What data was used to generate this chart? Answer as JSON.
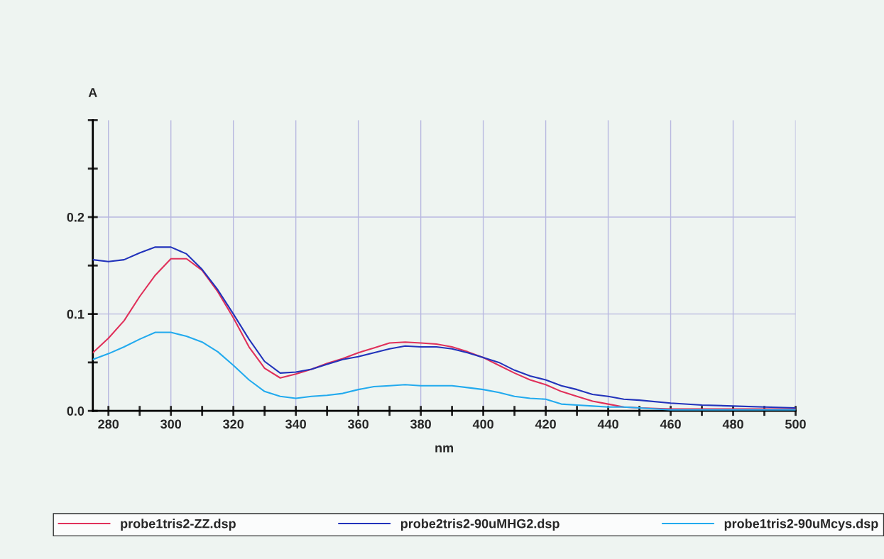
{
  "chart_data": {
    "type": "line",
    "xlabel": "nm",
    "ylabel": "A",
    "x": [
      275,
      280,
      285,
      290,
      295,
      300,
      305,
      310,
      315,
      320,
      325,
      330,
      335,
      340,
      345,
      350,
      355,
      360,
      365,
      370,
      375,
      380,
      385,
      390,
      395,
      400,
      405,
      410,
      415,
      420,
      425,
      430,
      435,
      440,
      445,
      450,
      460,
      470,
      480,
      490,
      500
    ],
    "series": [
      {
        "name": "probe1tris2-ZZ.dsp",
        "color": "#e0305a",
        "values": [
          0.06,
          0.075,
          0.093,
          0.118,
          0.14,
          0.157,
          0.157,
          0.145,
          0.123,
          0.096,
          0.066,
          0.044,
          0.034,
          0.038,
          0.043,
          0.049,
          0.054,
          0.06,
          0.065,
          0.07,
          0.071,
          0.07,
          0.069,
          0.066,
          0.061,
          0.055,
          0.047,
          0.039,
          0.032,
          0.027,
          0.02,
          0.015,
          0.01,
          0.007,
          0.004,
          0.003,
          0.002,
          0.002,
          0.002,
          0.002,
          0.002
        ]
      },
      {
        "name": "probe2tris2-90uMHG2.dsp",
        "color": "#2233bb",
        "values": [
          0.156,
          0.154,
          0.156,
          0.163,
          0.169,
          0.169,
          0.162,
          0.146,
          0.125,
          0.1,
          0.074,
          0.051,
          0.039,
          0.04,
          0.043,
          0.048,
          0.053,
          0.056,
          0.06,
          0.064,
          0.067,
          0.066,
          0.066,
          0.064,
          0.06,
          0.055,
          0.05,
          0.042,
          0.036,
          0.032,
          0.026,
          0.022,
          0.017,
          0.015,
          0.012,
          0.011,
          0.008,
          0.006,
          0.005,
          0.004,
          0.003
        ]
      },
      {
        "name": "probe1tris2-90uMcys.dsp",
        "color": "#22aaee",
        "values": [
          0.053,
          0.059,
          0.066,
          0.074,
          0.081,
          0.081,
          0.077,
          0.071,
          0.061,
          0.047,
          0.032,
          0.02,
          0.015,
          0.013,
          0.015,
          0.016,
          0.018,
          0.022,
          0.025,
          0.026,
          0.027,
          0.026,
          0.026,
          0.026,
          0.024,
          0.022,
          0.019,
          0.015,
          0.013,
          0.012,
          0.007,
          0.006,
          0.005,
          0.004,
          0.004,
          0.003,
          0.001,
          0.001,
          0.001,
          0.001,
          0.001
        ]
      }
    ],
    "xlim": [
      275,
      500
    ],
    "xticks": [
      280,
      {
        "value": 290,
        "label": null
      },
      300,
      {
        "value": 310,
        "label": null
      },
      320,
      {
        "value": 330,
        "label": null
      },
      340,
      {
        "value": 350,
        "label": null
      },
      360,
      {
        "value": 370,
        "label": null
      },
      380,
      {
        "value": 390,
        "label": null
      },
      400,
      {
        "value": 410,
        "label": null
      },
      420,
      {
        "value": 430,
        "label": null
      },
      440,
      {
        "value": 450,
        "label": null
      },
      460,
      {
        "value": 470,
        "label": null
      },
      480,
      {
        "value": 490,
        "label": null
      },
      500
    ],
    "ylim": [
      0,
      0.3
    ],
    "yticks": [
      {
        "value": 0,
        "label": "0.0"
      },
      {
        "value": 0.05,
        "label": null
      },
      {
        "value": 0.1,
        "label": "0.1"
      },
      {
        "value": 0.15,
        "label": null
      },
      {
        "value": 0.2,
        "label": "0.2"
      },
      {
        "value": 0.25,
        "label": null
      },
      {
        "value": 0.3,
        "label": null
      }
    ],
    "grid": true,
    "legend": "bottom",
    "marker": "none",
    "line_style": "solid"
  }
}
